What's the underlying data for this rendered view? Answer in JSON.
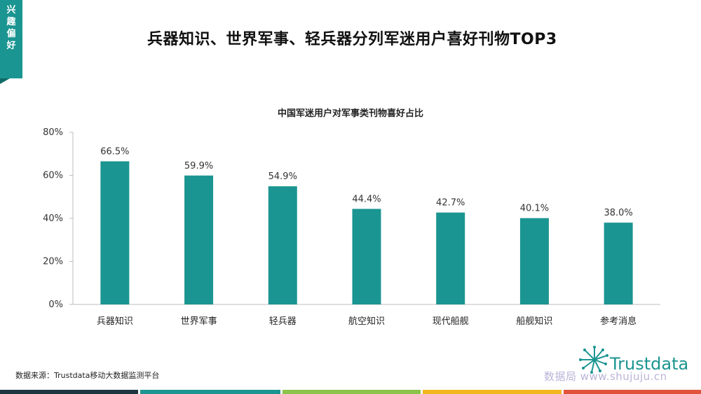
{
  "side_tab": {
    "label": "兴趣偏好"
  },
  "header": {
    "title": "兵器知识、世界军事、轻兵器分列军迷用户喜好刊物TOP3"
  },
  "chart_data": {
    "type": "bar",
    "title": "中国军迷用户对军事类刊物喜好占比",
    "categories": [
      "兵器知识",
      "世界军事",
      "轻兵器",
      "航空知识",
      "现代船舰",
      "船舰知识",
      "参考消息"
    ],
    "values": [
      66.5,
      59.9,
      54.9,
      44.4,
      42.7,
      40.1,
      38.0
    ],
    "value_labels": [
      "66.5%",
      "59.9%",
      "54.9%",
      "44.4%",
      "42.7%",
      "40.1%",
      "38.0%"
    ],
    "y_ticks": [
      "0%",
      "20%",
      "40%",
      "60%",
      "80%"
    ],
    "ylim": [
      0,
      80
    ],
    "xlabel": "",
    "ylabel": "",
    "grid": false,
    "bar_color": "#1b9591"
  },
  "footer": {
    "source": "数据来源：Trustdata移动大数据监测平台",
    "brand": "Trustdata",
    "watermark": "数据局 www.shujuju.cn"
  },
  "colors": {
    "accent": "#1b9591",
    "bottom_bar": [
      "#1c3640",
      "#1b9591",
      "#8cc34a",
      "#f3b61f",
      "#e2533c"
    ]
  }
}
